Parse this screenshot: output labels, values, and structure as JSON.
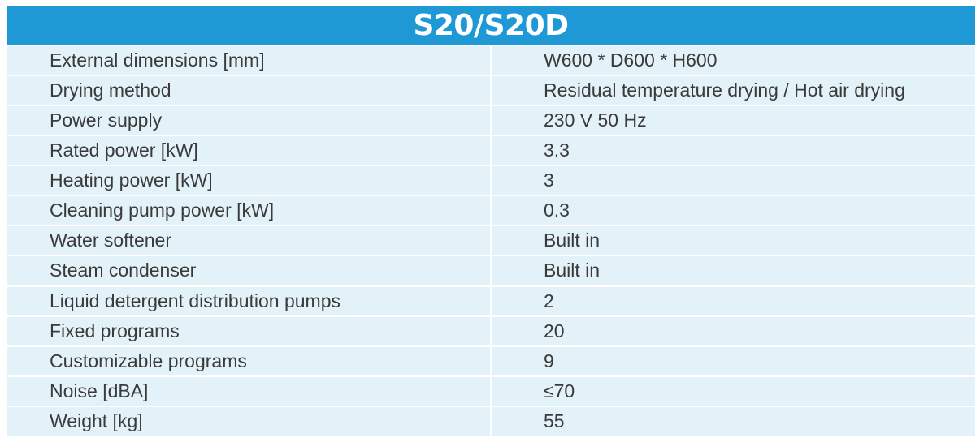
{
  "table": {
    "title": "S20/S20D",
    "rows": [
      {
        "label": "External dimensions [mm]",
        "value": "W600 * D600 * H600"
      },
      {
        "label": "Drying method",
        "value": "Residual temperature drying / Hot air drying"
      },
      {
        "label": "Power supply",
        "value": "230 V 50 Hz"
      },
      {
        "label": "Rated power [kW]",
        "value": "3.3"
      },
      {
        "label": "Heating power [kW]",
        "value": "3"
      },
      {
        "label": "Cleaning pump power [kW]",
        "value": "0.3"
      },
      {
        "label": "Water softener",
        "value": "Built in"
      },
      {
        "label": "Steam condenser",
        "value": "Built in"
      },
      {
        "label": "Liquid detergent distribution pumps",
        "value": "2"
      },
      {
        "label": "Fixed programs",
        "value": "20"
      },
      {
        "label": "Customizable programs",
        "value": "9"
      },
      {
        "label": "Noise [dBA]",
        "value": "≤70"
      },
      {
        "label": "Weight [kg]",
        "value": "55"
      }
    ]
  },
  "colors": {
    "header_bg": "#1f98d6",
    "row_bg": "#e3f2f9",
    "text": "#3a3a3a"
  }
}
